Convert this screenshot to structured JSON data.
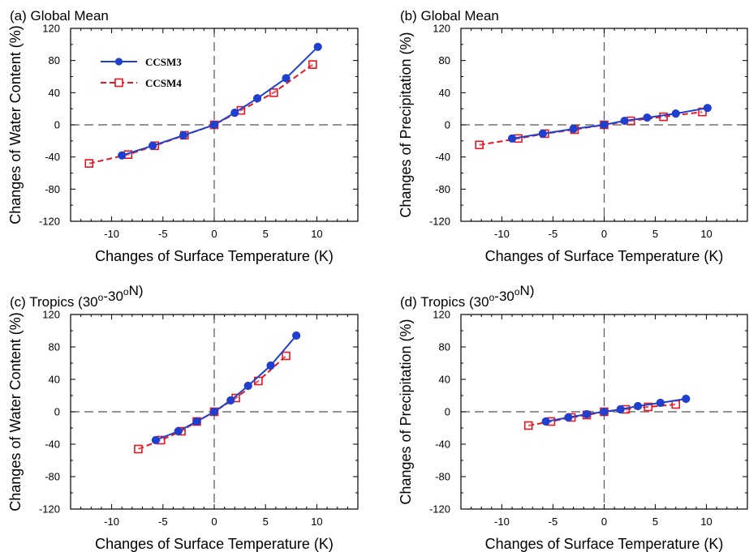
{
  "colors": {
    "ccsm3": "#1f3fcf",
    "ccsm4": "#e8141e",
    "axis": "#000000",
    "zero_line": "#555555"
  },
  "legend": {
    "ccsm3_label": "CCSM3",
    "ccsm4_label": "CCSM4"
  },
  "chart_data": [
    {
      "panel": "a",
      "type": "line",
      "title": "(a) Global Mean",
      "xlabel": "Changes of Surface Temperature (K)",
      "ylabel": "Changes of Water Content (%)",
      "xlim": [
        -14,
        14
      ],
      "ylim": [
        -120,
        120
      ],
      "xticks": [
        -10,
        -5,
        0,
        5,
        10
      ],
      "yticks": [
        -120,
        -80,
        -40,
        0,
        40,
        80,
        120
      ],
      "grid": false,
      "legend": "top-left",
      "series": [
        {
          "name": "CCSM3",
          "x": [
            -9,
            -6,
            -3,
            0,
            2,
            4.2,
            7,
            10.1
          ],
          "y": [
            -38,
            -26,
            -13,
            0,
            15,
            33,
            58,
            97
          ]
        },
        {
          "name": "CCSM4",
          "x": [
            -12.2,
            -8.4,
            -5.8,
            -2.9,
            0,
            2.6,
            5.8,
            9.6
          ],
          "y": [
            -48,
            -37,
            -26,
            -13,
            0,
            18,
            40,
            75
          ]
        }
      ]
    },
    {
      "panel": "b",
      "type": "line",
      "title": "(b) Global Mean",
      "xlabel": "Changes of Surface Temperature (K)",
      "ylabel": "Changes of Precipitation (%)",
      "xlim": [
        -14,
        14
      ],
      "ylim": [
        -120,
        120
      ],
      "xticks": [
        -10,
        -5,
        0,
        5,
        10
      ],
      "yticks": [
        -120,
        -80,
        -40,
        0,
        40,
        80,
        120
      ],
      "grid": false,
      "legend": "none",
      "series": [
        {
          "name": "CCSM3",
          "x": [
            -9,
            -6,
            -3,
            0,
            2,
            4.2,
            7,
            10.1
          ],
          "y": [
            -17,
            -11,
            -5,
            0,
            5,
            9,
            14,
            21
          ]
        },
        {
          "name": "CCSM4",
          "x": [
            -12.2,
            -8.4,
            -5.8,
            -2.9,
            0,
            2.6,
            5.8,
            9.6
          ],
          "y": [
            -25,
            -17,
            -11,
            -6,
            0,
            5,
            10,
            16
          ]
        }
      ]
    },
    {
      "panel": "c",
      "type": "line",
      "title": "(c) Tropics (30°-30°N)",
      "xlabel": "Changes of Surface Temperature (K)",
      "ylabel": "Changes of Water Content (%)",
      "xlim": [
        -14,
        14
      ],
      "ylim": [
        -120,
        120
      ],
      "xticks": [
        -10,
        -5,
        0,
        5,
        10
      ],
      "yticks": [
        -120,
        -80,
        -40,
        0,
        40,
        80,
        120
      ],
      "grid": false,
      "legend": "none",
      "series": [
        {
          "name": "CCSM3",
          "x": [
            -5.7,
            -3.5,
            -1.7,
            0,
            1.6,
            3.3,
            5.5,
            8
          ],
          "y": [
            -35,
            -24,
            -12,
            0,
            14,
            32,
            57,
            94
          ]
        },
        {
          "name": "CCSM4",
          "x": [
            -7.4,
            -5.2,
            -3.2,
            -1.7,
            0,
            2.1,
            4.3,
            7
          ],
          "y": [
            -46,
            -35,
            -24,
            -12,
            0,
            17,
            38,
            69
          ]
        }
      ]
    },
    {
      "panel": "d",
      "type": "line",
      "title": "(d) Tropics (30°-30°N)",
      "xlabel": "Changes of Surface Temperature (K)",
      "ylabel": "Changes of Precipitation (%)",
      "xlim": [
        -14,
        14
      ],
      "ylim": [
        -120,
        120
      ],
      "xticks": [
        -10,
        -5,
        0,
        5,
        10
      ],
      "yticks": [
        -120,
        -80,
        -40,
        0,
        40,
        80,
        120
      ],
      "grid": false,
      "legend": "none",
      "series": [
        {
          "name": "CCSM3",
          "x": [
            -5.7,
            -3.5,
            -1.7,
            0,
            1.6,
            3.3,
            5.5,
            8
          ],
          "y": [
            -12,
            -7,
            -3,
            0,
            3,
            7,
            11,
            16
          ]
        },
        {
          "name": "CCSM4",
          "x": [
            -7.4,
            -5.2,
            -3.2,
            -1.7,
            0,
            2.1,
            4.3,
            7
          ],
          "y": [
            -17,
            -12,
            -7,
            -4,
            0,
            3,
            6,
            9
          ]
        }
      ]
    }
  ]
}
